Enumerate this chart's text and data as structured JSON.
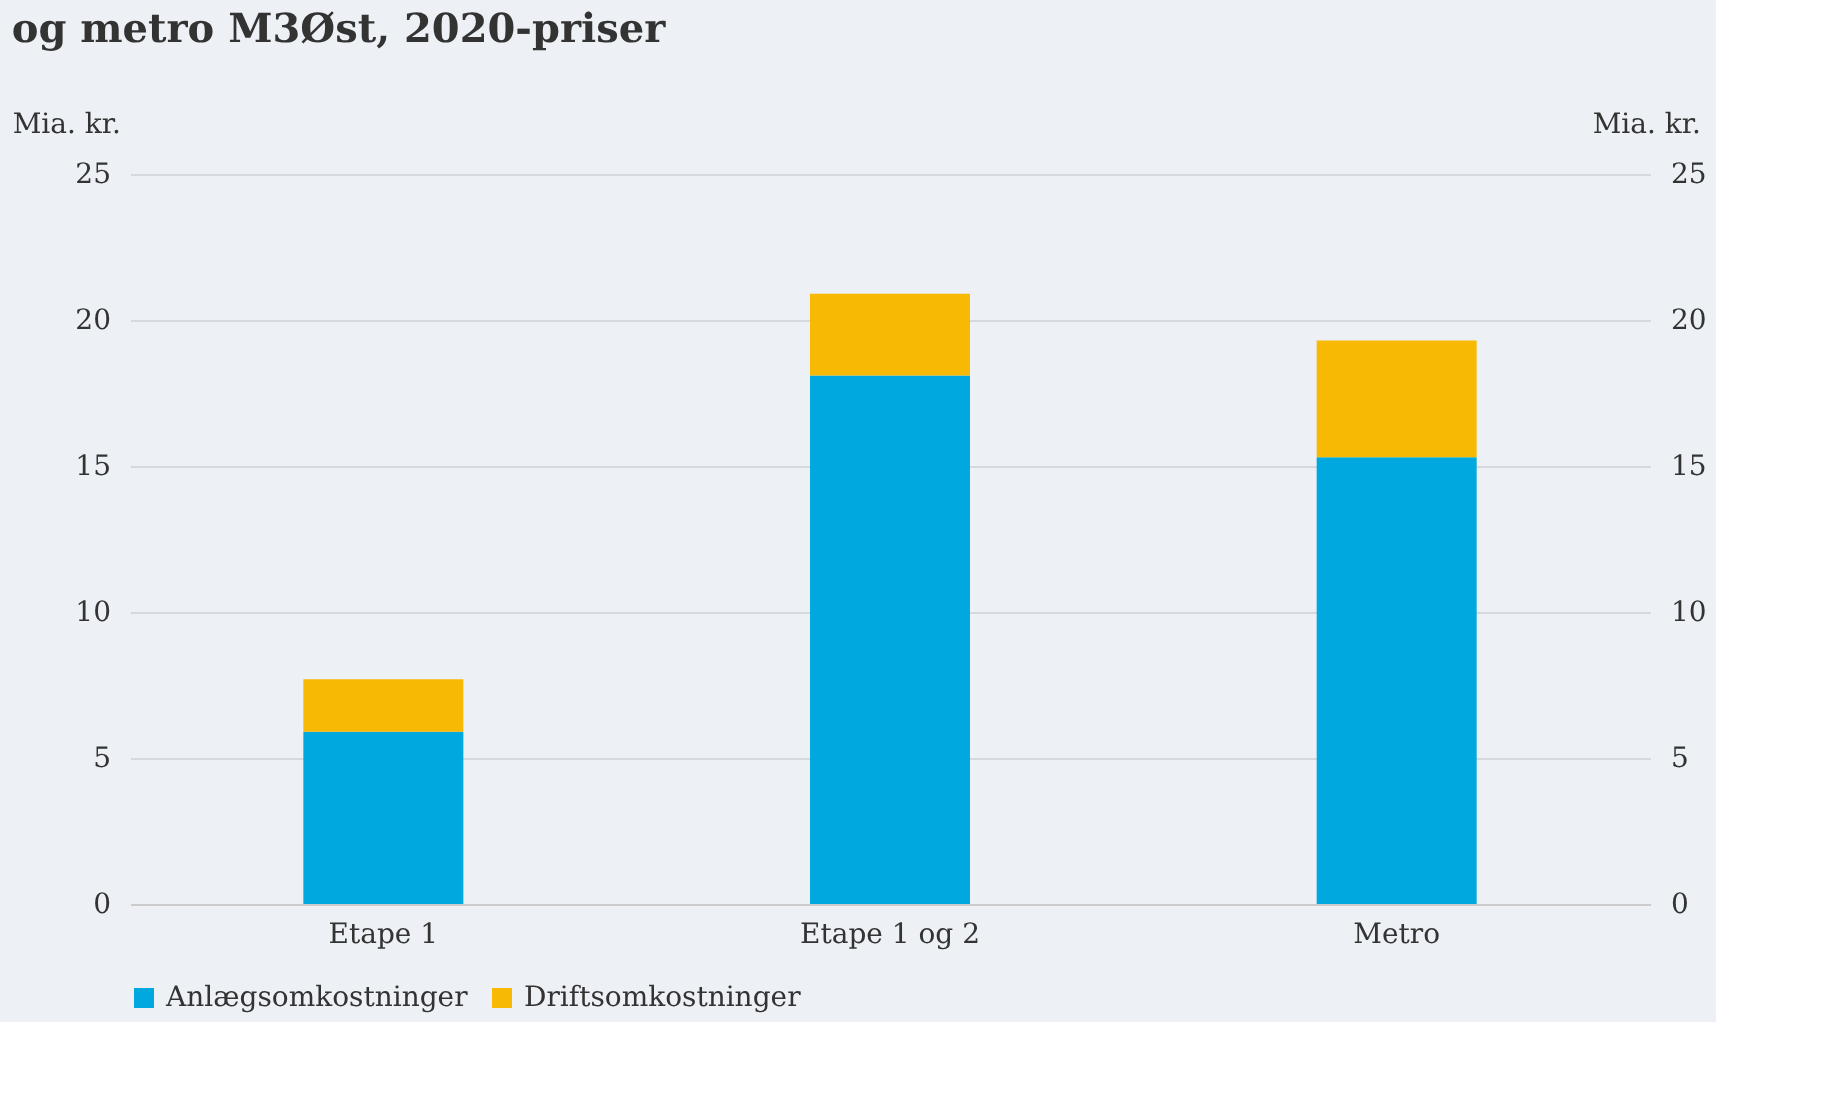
{
  "chart_data": {
    "type": "bar",
    "title": "og metro M3Øst, 2020-priser",
    "ylabel": "Mia. kr.",
    "y2label": "Mia. kr.",
    "categories": [
      "Etape 1",
      "Etape 1 og 2",
      "Metro"
    ],
    "series": [
      {
        "name": "Anlægsomkostninger",
        "color": "#00a8e0",
        "values": [
          5.9,
          18.1,
          15.3
        ]
      },
      {
        "name": "Driftsomkostninger",
        "color": "#f8b904",
        "values": [
          1.8,
          2.8,
          4.0
        ]
      }
    ],
    "stacked": true,
    "ylim": [
      0,
      25
    ],
    "yticks": [
      0,
      5,
      10,
      15,
      20,
      25
    ],
    "y2lim": [
      0,
      25
    ],
    "y2ticks": [
      0,
      5,
      10,
      15,
      20,
      25
    ],
    "grid": "y",
    "legend": "bottom"
  }
}
